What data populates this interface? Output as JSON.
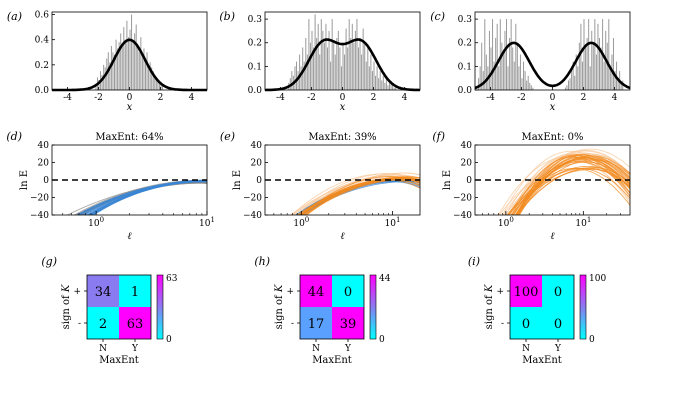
{
  "colors": {
    "hist_bar": "#9a9a9a",
    "density_line": "#000000",
    "gray_curves": "#8c8c8c",
    "blue_curves": "#3a86d4",
    "orange_curves": "#f28b20",
    "light_orange_curves": "#f8c79a",
    "cell_magenta": "#ff00ff",
    "cell_cyan": "#00ffff",
    "cell_purple": "#8a7cf0",
    "cell_blue": "#5aa0ff"
  },
  "chart_data": [
    {
      "type": "bar",
      "panel": "(a)",
      "title": "",
      "xlabel": "x",
      "ylabel": "",
      "xlim": [
        -5,
        5
      ],
      "ylim": [
        0,
        0.62
      ],
      "xticks": [
        "-4",
        "-2",
        "0",
        "2",
        "4"
      ],
      "yticks": [
        "0.0",
        "0.2",
        "0.4",
        "0.6"
      ],
      "density": {
        "mixture": [
          {
            "mu": 0,
            "sigma": 1,
            "w": 1
          }
        ]
      },
      "bins": {
        "start": -2.2,
        "width": 0.1,
        "heights": [
          0.05,
          0.1,
          0.08,
          0.15,
          0.12,
          0.2,
          0.18,
          0.25,
          0.3,
          0.22,
          0.35,
          0.3,
          0.28,
          0.4,
          0.33,
          0.38,
          0.45,
          0.35,
          0.5,
          0.4,
          0.55,
          0.42,
          0.48,
          0.6,
          0.38,
          0.45,
          0.52,
          0.35,
          0.3,
          0.42,
          0.28,
          0.33,
          0.25,
          0.3,
          0.2,
          0.22,
          0.18,
          0.15,
          0.12,
          0.1,
          0.08,
          0.05,
          0.06,
          0.04
        ]
      }
    },
    {
      "type": "bar",
      "panel": "(b)",
      "title": "",
      "xlabel": "x",
      "ylabel": "",
      "xlim": [
        -5,
        5
      ],
      "ylim": [
        0,
        0.33
      ],
      "xticks": [
        "-4",
        "-2",
        "0",
        "2",
        "4"
      ],
      "yticks": [
        "0.0",
        "0.1",
        "0.2",
        "0.3"
      ],
      "density": {
        "mixture": [
          {
            "mu": -1.2,
            "sigma": 1,
            "w": 0.5
          },
          {
            "mu": 1.2,
            "sigma": 1,
            "w": 0.5
          }
        ]
      },
      "bins": {
        "start": -3.5,
        "width": 0.1,
        "heights": [
          0.03,
          0.05,
          0.08,
          0.06,
          0.1,
          0.12,
          0.08,
          0.15,
          0.1,
          0.18,
          0.12,
          0.22,
          0.15,
          0.3,
          0.2,
          0.25,
          0.18,
          0.32,
          0.22,
          0.28,
          0.15,
          0.3,
          0.25,
          0.2,
          0.28,
          0.18,
          0.25,
          0.12,
          0.3,
          0.2,
          0.15,
          0.22,
          0.25,
          0.18,
          0.1,
          0.2,
          0.15,
          0.26,
          0.18,
          0.3,
          0.22,
          0.28,
          0.2,
          0.25,
          0.3,
          0.18,
          0.22,
          0.15,
          0.26,
          0.2,
          0.12,
          0.18,
          0.1,
          0.15,
          0.08,
          0.12,
          0.06,
          0.1,
          0.05,
          0.08,
          0.04,
          0.06,
          0.03,
          0.05,
          0.02,
          0.04,
          0.03,
          0.02,
          0.01,
          0.02
        ]
      }
    },
    {
      "type": "bar",
      "panel": "(c)",
      "title": "",
      "xlabel": "x",
      "ylabel": "",
      "xlim": [
        -5,
        5
      ],
      "ylim": [
        0,
        0.33
      ],
      "xticks": [
        "-4",
        "-2",
        "0",
        "2",
        "4"
      ],
      "yticks": [
        "0.0",
        "0.1",
        "0.2",
        "0.3"
      ],
      "density": {
        "mixture": [
          {
            "mu": -2.5,
            "sigma": 1,
            "w": 0.5
          },
          {
            "mu": 2.5,
            "sigma": 1,
            "w": 0.5
          }
        ]
      },
      "bins": {
        "start": -4.8,
        "width": 0.1,
        "heights": [
          0.05,
          0.1,
          0.2,
          0.08,
          0.3,
          0.15,
          0.1,
          0.25,
          0.18,
          0.3,
          0.12,
          0.22,
          0.28,
          0.1,
          0.3,
          0.2,
          0.15,
          0.25,
          0.3,
          0.1,
          0.22,
          0.3,
          0.18,
          0.12,
          0.28,
          0.2,
          0.1,
          0.15,
          0.05,
          0.12,
          0.08,
          0.04,
          0.06,
          0.03,
          0.02,
          0.01,
          0,
          0,
          0,
          0,
          0,
          0,
          0,
          0,
          0,
          0,
          0,
          0,
          0,
          0,
          0,
          0,
          0,
          0,
          0,
          0,
          0.01,
          0.02,
          0.04,
          0.05,
          0.08,
          0.12,
          0.06,
          0.15,
          0.1,
          0.2,
          0.28,
          0.12,
          0.3,
          0.18,
          0.22,
          0.3,
          0.1,
          0.25,
          0.2,
          0.3,
          0.15,
          0.28,
          0.22,
          0.18,
          0.3,
          0.12,
          0.25,
          0.2,
          0.3,
          0.1,
          0.15,
          0.22,
          0.08,
          0.12,
          0.05,
          0.08,
          0.03,
          0.04
        ]
      }
    },
    {
      "type": "line",
      "panel": "(d)",
      "title": "MaxEnt: 64%",
      "xlabel": "ℓ",
      "ylabel": "ln E",
      "xscale": "log",
      "xlim": [
        0.4,
        10
      ],
      "ylim": [
        -40,
        40
      ],
      "xticks": [
        {
          "v": 1,
          "b": "10",
          "e": "0"
        },
        {
          "v": 10,
          "b": "10",
          "e": "1"
        }
      ],
      "yticks": [
        "40",
        "20",
        "0",
        "−20",
        "−40"
      ],
      "reference_line": 0,
      "curve_groups": [
        {
          "color": "gray_curves",
          "count": 14,
          "x0": [
            0.55,
            0.75
          ],
          "k": [
            0.55,
            0.8
          ],
          "peak": [
            -4,
            0
          ],
          "xp": [
            8,
            10
          ]
        },
        {
          "color": "blue_curves",
          "count": 18,
          "x0": [
            0.65,
            0.95
          ],
          "k": [
            0.5,
            0.75
          ],
          "peak": [
            -2,
            0
          ],
          "xp": [
            9,
            10
          ]
        }
      ]
    },
    {
      "type": "line",
      "panel": "(e)",
      "title": "MaxEnt: 39%",
      "xlabel": "ℓ",
      "ylabel": "ln E",
      "xscale": "log",
      "xlim": [
        0.4,
        20
      ],
      "ylim": [
        -40,
        40
      ],
      "xticks": [
        {
          "v": 1,
          "b": "10",
          "e": "0"
        },
        {
          "v": 10,
          "b": "10",
          "e": "1"
        }
      ],
      "yticks": [
        "40",
        "20",
        "0",
        "−20",
        "−40"
      ],
      "reference_line": 0,
      "curve_groups": [
        {
          "color": "light_orange_curves",
          "count": 12,
          "x0": [
            0.75,
            1.0
          ],
          "k": [
            0.45,
            0.65
          ],
          "peak": [
            0,
            8
          ],
          "xp": [
            8,
            14
          ]
        },
        {
          "color": "blue_curves",
          "count": 10,
          "x0": [
            0.85,
            1.05
          ],
          "k": [
            0.45,
            0.6
          ],
          "peak": [
            -2,
            1
          ],
          "xp": [
            10,
            16
          ]
        },
        {
          "color": "orange_curves",
          "count": 16,
          "x0": [
            0.85,
            1.15
          ],
          "k": [
            0.45,
            0.6
          ],
          "peak": [
            0,
            4
          ],
          "xp": [
            9,
            15
          ]
        }
      ]
    },
    {
      "type": "line",
      "panel": "(f)",
      "title": "MaxEnt: 0%",
      "xlabel": "ℓ",
      "ylabel": "ln E",
      "xscale": "log",
      "xlim": [
        0.4,
        40
      ],
      "ylim": [
        -40,
        40
      ],
      "xticks": [
        {
          "v": 1,
          "b": "10",
          "e": "0"
        },
        {
          "v": 10,
          "b": "10",
          "e": "1"
        }
      ],
      "yticks": [
        "40",
        "20",
        "0",
        "−20",
        "−40"
      ],
      "reference_line": 0,
      "curve_groups": [
        {
          "color": "light_orange_curves",
          "count": 18,
          "x0": [
            0.8,
            1.3
          ],
          "k": [
            0.35,
            0.55
          ],
          "peak": [
            20,
            36
          ],
          "xp": [
            6,
            14
          ]
        },
        {
          "color": "orange_curves",
          "count": 22,
          "x0": [
            1.0,
            1.5
          ],
          "k": [
            0.35,
            0.5
          ],
          "peak": [
            12,
            30
          ],
          "xp": [
            7,
            14
          ]
        }
      ]
    },
    {
      "type": "heatmap",
      "panel": "(g)",
      "xlabel": "MaxEnt",
      "ylabel": "sign of K",
      "x_categories": [
        "N",
        "Y"
      ],
      "y_categories": [
        "+",
        "-"
      ],
      "values": [
        [
          34,
          1
        ],
        [
          2,
          63
        ]
      ],
      "cell_colors": [
        [
          "cell_purple",
          "cell_cyan"
        ],
        [
          "cell_cyan",
          "cell_magenta"
        ]
      ],
      "colorbar": {
        "min": 0,
        "max": 63,
        "labels": [
          "63",
          "0"
        ]
      }
    },
    {
      "type": "heatmap",
      "panel": "(h)",
      "xlabel": "MaxEnt",
      "ylabel": "sign of K",
      "x_categories": [
        "N",
        "Y"
      ],
      "y_categories": [
        "+",
        "-"
      ],
      "values": [
        [
          44,
          0
        ],
        [
          17,
          39
        ]
      ],
      "cell_colors": [
        [
          "cell_magenta",
          "cell_cyan"
        ],
        [
          "cell_blue",
          "cell_magenta"
        ]
      ],
      "colorbar": {
        "min": 0,
        "max": 44,
        "labels": [
          "44",
          "0"
        ]
      }
    },
    {
      "type": "heatmap",
      "panel": "(i)",
      "xlabel": "MaxEnt",
      "ylabel": "sign of K",
      "x_categories": [
        "N",
        "Y"
      ],
      "y_categories": [
        "+",
        "-"
      ],
      "values": [
        [
          100,
          0
        ],
        [
          0,
          0
        ]
      ],
      "cell_colors": [
        [
          "cell_magenta",
          "cell_cyan"
        ],
        [
          "cell_cyan",
          "cell_cyan"
        ]
      ],
      "colorbar": {
        "min": 0,
        "max": 100,
        "labels": [
          "100",
          "0"
        ]
      }
    }
  ]
}
